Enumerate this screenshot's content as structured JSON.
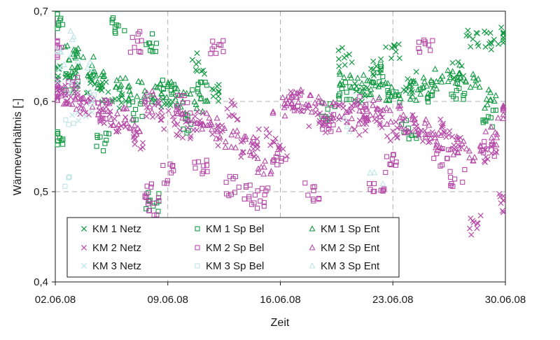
{
  "chart_data": {
    "type": "scatter",
    "title": "",
    "xlabel": "Zeit",
    "ylabel": "Wärmeverhältnis [-]",
    "ylim": [
      0.4,
      0.7
    ],
    "yticks": [
      0.4,
      0.5,
      0.6,
      0.7
    ],
    "ytick_labels": [
      "0,4",
      "0,5",
      "0,6",
      "0,7"
    ],
    "xlim": [
      "2008-06-02",
      "2008-06-30"
    ],
    "xticks": [
      "2008-06-02",
      "2008-06-09",
      "2008-06-16",
      "2008-06-23",
      "2008-06-30"
    ],
    "xtick_labels": [
      "02.06.08",
      "09.06.08",
      "16.06.08",
      "23.06.08",
      "30.06.08"
    ],
    "grid": "dashed vertical at weekly ticks, dashed horizontal at 0.5 and 0.6",
    "legend_position": "bottom-left",
    "series": [
      {
        "name": "KM 1 Netz",
        "marker": "cross",
        "color": "#139a43",
        "points": [
          [
            "2008-06-02",
            0.632
          ],
          [
            "2008-06-03",
            0.626
          ],
          [
            "2008-06-04",
            0.618
          ],
          [
            "2008-06-05",
            0.61
          ],
          [
            "2008-06-06",
            0.603
          ],
          [
            "2008-06-09",
            0.604
          ],
          [
            "2008-06-11",
            0.642
          ],
          [
            "2008-06-12",
            0.61
          ],
          [
            "2008-06-20",
            0.648
          ],
          [
            "2008-06-21",
            0.611
          ],
          [
            "2008-06-22",
            0.636
          ],
          [
            "2008-06-23",
            0.658
          ],
          [
            "2008-06-24",
            0.622
          ],
          [
            "2008-06-27",
            0.634
          ],
          [
            "2008-06-28",
            0.669
          ],
          [
            "2008-06-29",
            0.667
          ],
          [
            "2008-06-30",
            0.675
          ]
        ]
      },
      {
        "name": "KM 1 Sp Bel",
        "marker": "square",
        "color": "#139a43",
        "points": [
          [
            "2008-06-02",
            0.692
          ],
          [
            "2008-06-02",
            0.556
          ],
          [
            "2008-06-03",
            0.621
          ],
          [
            "2008-06-05",
            0.555
          ],
          [
            "2008-06-06",
            0.682
          ],
          [
            "2008-06-07",
            0.59
          ],
          [
            "2008-06-08",
            0.664
          ],
          [
            "2008-06-08",
            0.489
          ],
          [
            "2008-06-09",
            0.612
          ],
          [
            "2008-06-10",
            0.575
          ],
          [
            "2008-06-11",
            0.61
          ],
          [
            "2008-06-19",
            0.59
          ],
          [
            "2008-06-20",
            0.61
          ],
          [
            "2008-06-22",
            0.63
          ],
          [
            "2008-06-23",
            0.604
          ],
          [
            "2008-06-24",
            0.57
          ],
          [
            "2008-06-25",
            0.61
          ],
          [
            "2008-06-27",
            0.612
          ],
          [
            "2008-06-29",
            0.58
          ]
        ]
      },
      {
        "name": "KM 1 Sp Ent",
        "marker": "triangle",
        "color": "#139a43",
        "points": [
          [
            "2008-06-03",
            0.644
          ],
          [
            "2008-06-03",
            0.652
          ],
          [
            "2008-06-04",
            0.638
          ],
          [
            "2008-06-05",
            0.622
          ],
          [
            "2008-06-06",
            0.618
          ],
          [
            "2008-06-07",
            0.612
          ],
          [
            "2008-06-08",
            0.608
          ],
          [
            "2008-06-09",
            0.61
          ],
          [
            "2008-06-10",
            0.603
          ],
          [
            "2008-06-11",
            0.598
          ],
          [
            "2008-06-20",
            0.622
          ],
          [
            "2008-06-21",
            0.618
          ],
          [
            "2008-06-22",
            0.614
          ],
          [
            "2008-06-23",
            0.61
          ],
          [
            "2008-06-24",
            0.612
          ],
          [
            "2008-06-25",
            0.619
          ],
          [
            "2008-06-26",
            0.625
          ],
          [
            "2008-06-27",
            0.63
          ],
          [
            "2008-06-28",
            0.624
          ],
          [
            "2008-06-29",
            0.603
          ]
        ]
      },
      {
        "name": "KM 2 Netz",
        "marker": "cross",
        "color": "#b64aa8",
        "points": [
          [
            "2008-06-02",
            0.612
          ],
          [
            "2008-06-03",
            0.608
          ],
          [
            "2008-06-04",
            0.596
          ],
          [
            "2008-06-05",
            0.584
          ],
          [
            "2008-06-06",
            0.572
          ],
          [
            "2008-06-07",
            0.556
          ],
          [
            "2008-06-08",
            0.592
          ],
          [
            "2008-06-09",
            0.58
          ],
          [
            "2008-06-10",
            0.566
          ],
          [
            "2008-06-11",
            0.578
          ],
          [
            "2008-06-12",
            0.562
          ],
          [
            "2008-06-13",
            0.59
          ],
          [
            "2008-06-14",
            0.545
          ],
          [
            "2008-06-15",
            0.558
          ],
          [
            "2008-06-16",
            0.548
          ],
          [
            "2008-06-17",
            0.6
          ],
          [
            "2008-06-18",
            0.584
          ],
          [
            "2008-06-19",
            0.576
          ],
          [
            "2008-06-20",
            0.588
          ],
          [
            "2008-06-21",
            0.572
          ],
          [
            "2008-06-22",
            0.58
          ],
          [
            "2008-06-23",
            0.566
          ],
          [
            "2008-06-24",
            0.574
          ],
          [
            "2008-06-25",
            0.562
          ],
          [
            "2008-06-26",
            0.57
          ],
          [
            "2008-06-27",
            0.556
          ],
          [
            "2008-06-28",
            0.462
          ],
          [
            "2008-06-29",
            0.54
          ],
          [
            "2008-06-30",
            0.486
          ]
        ]
      },
      {
        "name": "KM 2 Sp Bel",
        "marker": "square",
        "color": "#b64aa8",
        "points": [
          [
            "2008-06-02",
            0.657
          ],
          [
            "2008-06-03",
            0.616
          ],
          [
            "2008-06-05",
            0.59
          ],
          [
            "2008-06-07",
            0.666
          ],
          [
            "2008-06-08",
            0.478
          ],
          [
            "2008-06-08",
            0.5
          ],
          [
            "2008-06-09",
            0.52
          ],
          [
            "2008-06-10",
            0.595
          ],
          [
            "2008-06-11",
            0.53
          ],
          [
            "2008-06-12",
            0.658
          ],
          [
            "2008-06-13",
            0.506
          ],
          [
            "2008-06-14",
            0.496
          ],
          [
            "2008-06-15",
            0.493
          ],
          [
            "2008-06-16",
            0.535
          ],
          [
            "2008-06-17",
            0.6
          ],
          [
            "2008-06-18",
            0.5
          ],
          [
            "2008-06-19",
            0.575
          ],
          [
            "2008-06-21",
            0.596
          ],
          [
            "2008-06-22",
            0.509
          ],
          [
            "2008-06-23",
            0.53
          ],
          [
            "2008-06-25",
            0.662
          ],
          [
            "2008-06-26",
            0.54
          ],
          [
            "2008-06-27",
            0.515
          ],
          [
            "2008-06-29",
            0.55
          ]
        ]
      },
      {
        "name": "KM 2 Sp Ent",
        "marker": "triangle",
        "color": "#b64aa8",
        "points": [
          [
            "2008-06-02",
            0.61
          ],
          [
            "2008-06-03",
            0.6
          ],
          [
            "2008-06-04",
            0.594
          ],
          [
            "2008-06-05",
            0.588
          ],
          [
            "2008-06-06",
            0.582
          ],
          [
            "2008-06-07",
            0.575
          ],
          [
            "2008-06-08",
            0.6
          ],
          [
            "2008-06-10",
            0.59
          ],
          [
            "2008-06-11",
            0.58
          ],
          [
            "2008-06-12",
            0.57
          ],
          [
            "2008-06-13",
            0.56
          ],
          [
            "2008-06-14",
            0.552
          ],
          [
            "2008-06-15",
            0.53
          ],
          [
            "2008-06-16",
            0.594
          ],
          [
            "2008-06-17",
            0.608
          ],
          [
            "2008-06-18",
            0.596
          ],
          [
            "2008-06-19",
            0.588
          ],
          [
            "2008-06-20",
            0.58
          ],
          [
            "2008-06-21",
            0.586
          ],
          [
            "2008-06-22",
            0.592
          ],
          [
            "2008-06-23",
            0.584
          ],
          [
            "2008-06-24",
            0.576
          ],
          [
            "2008-06-25",
            0.57
          ],
          [
            "2008-06-26",
            0.56
          ],
          [
            "2008-06-27",
            0.552
          ],
          [
            "2008-06-28",
            0.545
          ],
          [
            "2008-06-29",
            0.56
          ],
          [
            "2008-06-30",
            0.59
          ]
        ]
      },
      {
        "name": "KM 3 Netz",
        "marker": "cross",
        "color": "#bfe4e6",
        "points": [
          [
            "2008-06-02",
            0.628
          ],
          [
            "2008-06-03",
            0.612
          ],
          [
            "2008-06-03",
            0.58
          ],
          [
            "2008-06-04",
            0.59
          ]
        ]
      },
      {
        "name": "KM 3 Sp Bel",
        "marker": "square",
        "color": "#bfe4e6",
        "points": [
          [
            "2008-06-03",
            0.57
          ],
          [
            "2008-06-03",
            0.51
          ],
          [
            "2008-06-04",
            0.6
          ]
        ]
      },
      {
        "name": "KM 3 Sp Ent",
        "marker": "triangle",
        "color": "#bfe4e6",
        "points": [
          [
            "2008-06-02",
            0.664
          ],
          [
            "2008-06-03",
            0.67
          ],
          [
            "2008-06-03",
            0.648
          ],
          [
            "2008-06-04",
            0.634
          ],
          [
            "2008-06-20",
            0.575
          ],
          [
            "2008-06-22",
            0.518
          ]
        ]
      }
    ]
  }
}
